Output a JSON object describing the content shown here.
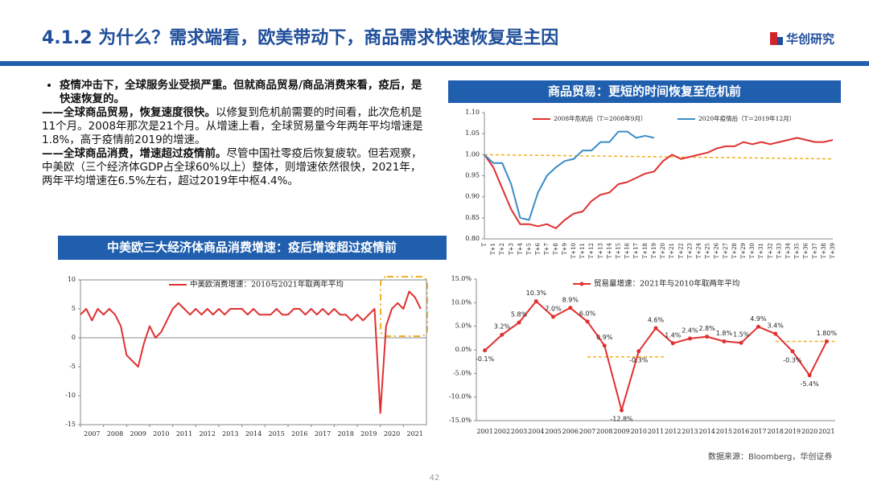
{
  "header": {
    "title": "4.1.2 为什么？需求端看，欧美带动下，商品需求快速恢复是主因",
    "logo": "华创研究"
  },
  "text": {
    "bullet": "疫情冲击下，全球服务业受损严重。但就商品贸易/商品消费来看，疫后，是快速恢复的。",
    "paragraphs": [
      {
        "bold": "——全球商品贸易，恢复速度很快。",
        "text": "以修复到危机前需要的时间看，此次危机是11个月。2008年那次是21个月。从增速上看，全球贸易量今年两年平均增速是1.8%，高于疫情前2019的增速。"
      },
      {
        "bold": "——全球商品消费，增速超过疫情前。",
        "text": "尽管中国社零疫后恢复疲软。但若观察，中美欧（三个经济体GDP占全球60%以上）整体，则增速依然很快，2021年，两年平均增速在6.5%左右，超过2019年中枢4.4%。"
      }
    ]
  },
  "source": "数据来源：Bloomberg，华创证券",
  "page_number": "42",
  "chart_data": [
    {
      "type": "line",
      "title": "商品贸易：更短的时间恢复至危机前",
      "categories": [
        "T",
        "T+1",
        "T+2",
        "T+3",
        "T+4",
        "T+5",
        "T+6",
        "T+7",
        "T+8",
        "T+9",
        "T+10",
        "T+11",
        "T+12",
        "T+13",
        "T+14",
        "T+15",
        "T+16",
        "T+17",
        "T+18",
        "T+19",
        "T+20",
        "T+21",
        "T+22",
        "T+23",
        "T+24",
        "T+25",
        "T+26",
        "T+27",
        "T+28",
        "T+29",
        "T+30",
        "T+31",
        "T+32",
        "T+33",
        "T+34",
        "T+35",
        "T+36",
        "T+37",
        "T+38",
        "T+39"
      ],
      "series": [
        {
          "name": "2008年危机后（T＝2008年9月）",
          "color": "#e03030",
          "values": [
            1.0,
            0.97,
            0.92,
            0.87,
            0.835,
            0.835,
            0.83,
            0.835,
            0.825,
            0.845,
            0.86,
            0.865,
            0.89,
            0.905,
            0.91,
            0.93,
            0.935,
            0.945,
            0.955,
            0.96,
            0.985,
            1.0,
            0.99,
            0.995,
            1.0,
            1.005,
            1.015,
            1.02,
            1.02,
            1.03,
            1.025,
            1.03,
            1.025,
            1.03,
            1.035,
            1.04,
            1.035,
            1.03,
            1.03,
            1.035
          ]
        },
        {
          "name": "2020年疫情后（T＝2019年12月）",
          "color": "#3a8cc8",
          "values": [
            1.0,
            0.98,
            0.98,
            0.93,
            0.85,
            0.845,
            0.91,
            0.95,
            0.97,
            0.985,
            0.99,
            1.01,
            1.01,
            1.03,
            1.03,
            1.055,
            1.055,
            1.04,
            1.045,
            1.04,
            null,
            null,
            null,
            null,
            null,
            null,
            null,
            null,
            null,
            null,
            null,
            null,
            null,
            null,
            null,
            null,
            null,
            null,
            null,
            null
          ]
        }
      ],
      "trendline": {
        "color": "#f0b020",
        "values": [
          1.0,
          0.99
        ]
      },
      "ylim": [
        0.8,
        1.1
      ],
      "yticks": [
        {
          "value": 0.8,
          "label": "0.80"
        },
        {
          "value": 0.85,
          "label": "0.85"
        },
        {
          "value": 0.9,
          "label": "0.90"
        },
        {
          "value": 0.95,
          "label": "0.95"
        },
        {
          "value": 1.0,
          "label": "1.00"
        },
        {
          "value": 1.05,
          "label": "1.05"
        },
        {
          "value": 1.1,
          "label": "1.10"
        }
      ]
    },
    {
      "type": "line",
      "title": "中美欧三大经济体商品消费增速：疫后增速超过疫情前",
      "x": [
        2007,
        2007.25,
        2007.5,
        2007.75,
        2008,
        2008.25,
        2008.5,
        2008.75,
        2009,
        2009.25,
        2009.5,
        2009.75,
        2010,
        2010.25,
        2010.5,
        2010.75,
        2011,
        2011.25,
        2011.5,
        2011.75,
        2012,
        2012.25,
        2012.5,
        2012.75,
        2013,
        2013.25,
        2013.5,
        2013.75,
        2014,
        2014.25,
        2014.5,
        2014.75,
        2015,
        2015.25,
        2015.5,
        2015.75,
        2016,
        2016.25,
        2016.5,
        2016.75,
        2017,
        2017.25,
        2017.5,
        2017.75,
        2018,
        2018.25,
        2018.5,
        2018.75,
        2019,
        2019.25,
        2019.5,
        2019.75,
        2020,
        2020.25,
        2020.5,
        2020.75,
        2021,
        2021.25,
        2021.5,
        2021.75
      ],
      "series": [
        {
          "name": "中美欧消费增速：2010与2021年取两年平均",
          "color": "#e03030",
          "values": [
            4,
            5,
            3,
            5,
            4,
            5,
            4,
            2,
            -3,
            -4,
            -5,
            -1,
            2,
            0,
            1,
            3,
            5,
            6,
            5,
            4,
            5,
            4,
            5,
            4,
            5,
            4,
            5,
            5,
            5,
            4,
            5,
            4,
            4,
            4,
            5,
            4,
            4,
            5,
            5,
            4,
            5,
            4,
            5,
            4,
            5,
            4,
            4,
            3,
            4,
            3,
            4,
            5,
            -13,
            2,
            5,
            6,
            5,
            8,
            7,
            5
          ]
        }
      ],
      "xlim": [
        2007,
        2022
      ],
      "xticks": [
        2007,
        2008,
        2009,
        2010,
        2011,
        2012,
        2013,
        2014,
        2015,
        2016,
        2017,
        2018,
        2019,
        2020,
        2021
      ],
      "ylim": [
        -15,
        10
      ],
      "yticks": [
        -15,
        -10,
        -5,
        0,
        5,
        10
      ]
    },
    {
      "type": "line",
      "markers": true,
      "categories": [
        "2001",
        "2002",
        "2003",
        "2004",
        "2005",
        "2006",
        "2007",
        "2008",
        "2009",
        "2010",
        "2011",
        "2012",
        "2013",
        "2014",
        "2015",
        "2016",
        "2017",
        "2018",
        "2019",
        "2020",
        "2021"
      ],
      "series": [
        {
          "name": "贸易量增速：2021年与2010年取两年平均",
          "color": "#e03030",
          "values": [
            -0.1,
            3.2,
            5.8,
            10.3,
            7.0,
            8.9,
            6.0,
            0.9,
            -12.8,
            -0.3,
            4.6,
            1.4,
            2.4,
            2.8,
            1.8,
            1.5,
            4.9,
            3.4,
            -0.3,
            -5.4,
            1.8
          ],
          "value_labels": [
            "-0.1%",
            "3.2%",
            "5.8%",
            "10.3%",
            "7.0%",
            "8.9%",
            "6.0%",
            "0.9%",
            "-12.8%",
            "-0.3%",
            "4.6%",
            "1.4%",
            "2.4%",
            "2.8%",
            "1.8%",
            "1.5%",
            "4.9%",
            "3.4%",
            "-0.3%",
            "-5.4%",
            "1.80%"
          ]
        }
      ],
      "reference_lines": [
        {
          "from": "2007",
          "to": "2011",
          "value": -1.5,
          "color": "#f0b020"
        },
        {
          "from": "2018",
          "to": "2021",
          "value": 1.8,
          "color": "#f0b020"
        }
      ],
      "ylim": [
        -15,
        15
      ],
      "yticks": [
        {
          "value": -15,
          "label": "-15.0%"
        },
        {
          "value": -10,
          "label": "-10.0%"
        },
        {
          "value": -5,
          "label": "-5.0%"
        },
        {
          "value": 0,
          "label": "0.0%"
        },
        {
          "value": 5,
          "label": "5.0%"
        },
        {
          "value": 10,
          "label": "10.0%"
        },
        {
          "value": 15,
          "label": "15.0%"
        }
      ]
    }
  ]
}
